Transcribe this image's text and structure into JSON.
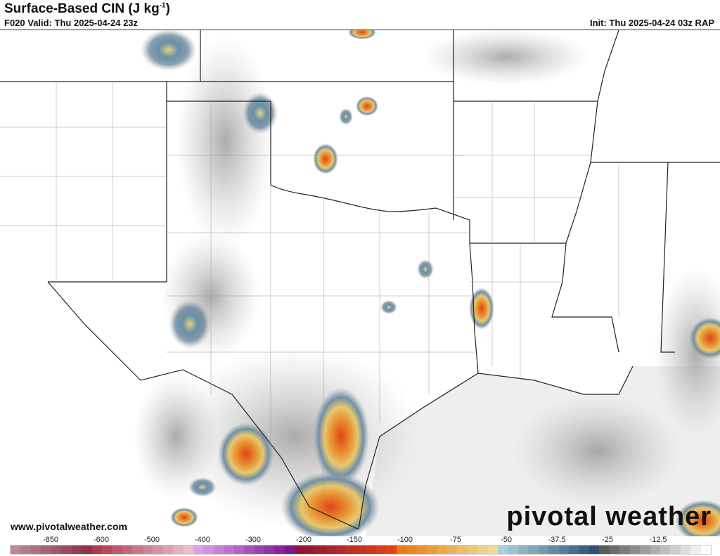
{
  "header": {
    "title": "Surface-Based CIN (J kg",
    "title_sup": "-1",
    "title_end": ")",
    "valid": "F020 Valid: Thu 2025-04-24 23z",
    "init": "Init: Thu 2025-04-24 03z RAP"
  },
  "footer": {
    "website": "www.pivotalweather.com",
    "logo": "pivotal weather"
  },
  "colorbar": {
    "labels": [
      "-850",
      "-600",
      "-500",
      "-400",
      "-300",
      "-200",
      "-150",
      "-100",
      "-75",
      "-50",
      "-37.5",
      "-25",
      "-12.5"
    ],
    "ranges": [
      {
        "from": "#b88a92",
        "to": "#8a3448",
        "n": 8
      },
      {
        "from": "#b03a50",
        "to": "#e8c0c8",
        "n": 10
      },
      {
        "from": "#dca0ec",
        "to": "#781890",
        "n": 10
      },
      {
        "from": "#8c1438",
        "to": "#e04418",
        "n": 10
      },
      {
        "from": "#e87c10",
        "to": "#ecdc98",
        "n": 10
      },
      {
        "from": "#a8d0dc",
        "to": "#34506e",
        "n": 10
      },
      {
        "from": "#5c5c5c",
        "to": "#ffffff",
        "n": 11
      }
    ]
  }
}
